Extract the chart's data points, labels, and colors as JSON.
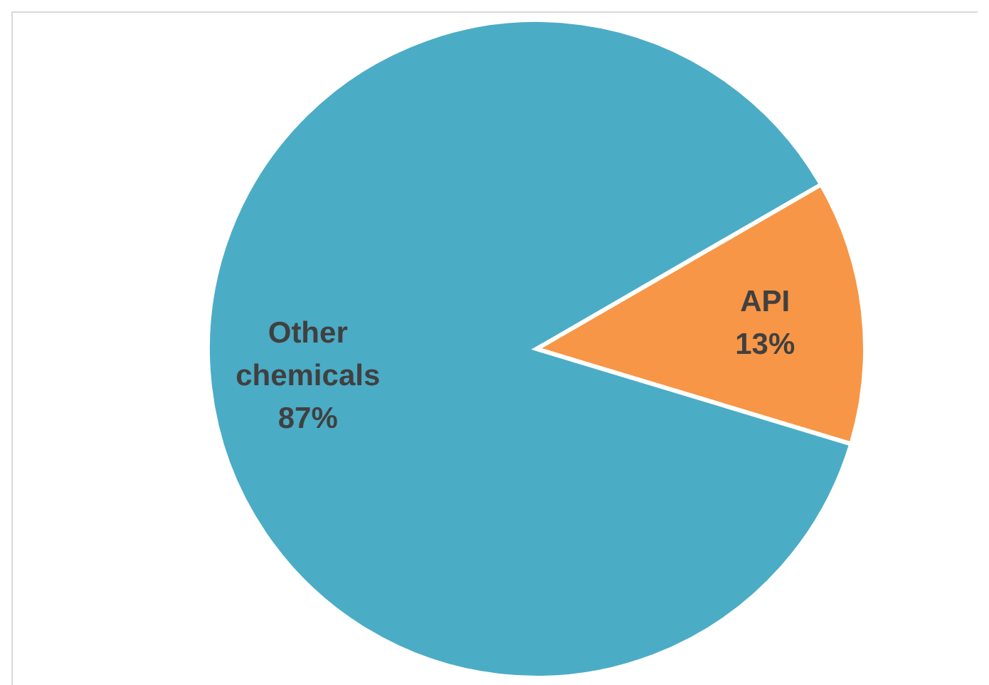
{
  "chart_data": {
    "type": "pie",
    "categories": [
      "API",
      "Other chemicals"
    ],
    "values": [
      13,
      87
    ],
    "colors": [
      "#f79646",
      "#4bacc6"
    ],
    "value_labels": [
      "13%",
      "87%"
    ],
    "legend": false
  }
}
